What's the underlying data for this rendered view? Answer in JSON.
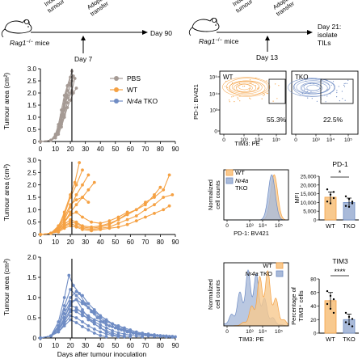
{
  "colors": {
    "pbs": "#a59a94",
    "wt": "#f5a143",
    "tko": "#6f8cc4",
    "wt_fill": "#f8c98e",
    "tko_fill": "#a9bad9",
    "axis": "#000000"
  },
  "schematic_left": {
    "step1": [
      "Inoculate",
      "tumour"
    ],
    "step2": [
      "Adoptive",
      "transfer"
    ],
    "mouse_label": "Rag1",
    "mouse_label_sup": "−/−",
    "mouse_label_rest": " mice",
    "day_mark": "Day 7",
    "end_label": "Day 90"
  },
  "schematic_right": {
    "step1": [
      "Inoculate",
      "tumour"
    ],
    "step2": [
      "Adoptive",
      "transfer"
    ],
    "mouse_label": "Rag1",
    "mouse_label_sup": "−/−",
    "mouse_label_rest": " mice",
    "day_mark": "Day 13",
    "end_label": [
      "Day 21:",
      "isolate",
      "TILs"
    ]
  },
  "legend": [
    {
      "label": "PBS",
      "key": "pbs"
    },
    {
      "label": "WT",
      "key": "wt"
    },
    {
      "label": "Nr4a TKO",
      "italic_part": "Nr4a",
      "rest": " TKO",
      "key": "tko"
    }
  ],
  "growth_axes": {
    "ylabel": "Tumour area (cm²)",
    "xlabel": "Days after tumour inoculation",
    "yticks": [
      "0",
      "0.5",
      "1.0",
      "1.5",
      "2.0",
      "2.5",
      "3.0"
    ],
    "yticks_bottom": [
      "0",
      "0.5",
      "1.0",
      "1.5",
      "2.0"
    ],
    "xticks": [
      "0",
      "10",
      "20",
      "30",
      "40",
      "50",
      "60",
      "70",
      "80",
      "90"
    ]
  },
  "chart_data": [
    {
      "type": "line",
      "panel": "PBS",
      "xlim": [
        0,
        90
      ],
      "ylim": [
        0,
        3.0
      ],
      "vline_x": 21,
      "series": [
        {
          "x": [
            0,
            7,
            10,
            12,
            14,
            16,
            18,
            20
          ],
          "y": [
            0,
            0.05,
            0.2,
            0.55,
            1.0,
            1.55,
            2.1,
            2.65
          ]
        },
        {
          "x": [
            0,
            7,
            10,
            12,
            14,
            16,
            18,
            21
          ],
          "y": [
            0,
            0.05,
            0.15,
            0.4,
            0.8,
            1.3,
            1.9,
            2.5
          ]
        },
        {
          "x": [
            0,
            7,
            10,
            12,
            14,
            16,
            18,
            21
          ],
          "y": [
            0,
            0.05,
            0.2,
            0.6,
            1.1,
            1.7,
            2.3,
            2.9
          ]
        },
        {
          "x": [
            0,
            7,
            10,
            12,
            14,
            16,
            18,
            20
          ],
          "y": [
            0,
            0.05,
            0.3,
            0.7,
            1.3,
            1.9,
            2.3,
            2.4
          ]
        },
        {
          "x": [
            0,
            7,
            10,
            12,
            14,
            16,
            18,
            21,
            23
          ],
          "y": [
            0,
            0.05,
            0.15,
            0.4,
            0.7,
            1.1,
            1.6,
            2.1,
            2.6
          ]
        },
        {
          "x": [
            0,
            7,
            10,
            12,
            14,
            16,
            18,
            20,
            22
          ],
          "y": [
            0,
            0.05,
            0.2,
            0.5,
            0.9,
            1.4,
            1.9,
            2.3,
            2.7
          ]
        },
        {
          "x": [
            0,
            7,
            10,
            12,
            14,
            16,
            18,
            20,
            22,
            24
          ],
          "y": [
            0,
            0.05,
            0.15,
            0.3,
            0.6,
            1.0,
            1.4,
            1.7,
            2.0,
            2.2
          ]
        },
        {
          "x": [
            0,
            7,
            10,
            12,
            14,
            16,
            18,
            20
          ],
          "y": [
            0,
            0.05,
            0.25,
            0.6,
            1.0,
            1.5,
            1.8,
            2.0
          ]
        }
      ]
    },
    {
      "type": "line",
      "panel": "WT",
      "xlim": [
        0,
        90
      ],
      "ylim": [
        0,
        3.0
      ],
      "vline_x": 21,
      "series": [
        {
          "x": [
            0,
            7,
            12,
            16,
            20,
            23,
            26
          ],
          "y": [
            0,
            0.05,
            0.3,
            0.9,
            1.6,
            2.1,
            2.9
          ]
        },
        {
          "x": [
            0,
            7,
            12,
            16,
            20,
            24,
            28
          ],
          "y": [
            0,
            0.05,
            0.35,
            0.8,
            1.5,
            2.0,
            2.6
          ]
        },
        {
          "x": [
            0,
            7,
            12,
            16,
            20,
            24,
            28,
            32
          ],
          "y": [
            0,
            0.05,
            0.25,
            0.6,
            1.1,
            1.6,
            2.0,
            2.4
          ]
        },
        {
          "x": [
            0,
            7,
            12,
            16,
            20,
            24,
            28,
            32,
            36
          ],
          "y": [
            0,
            0.05,
            0.2,
            0.5,
            0.9,
            1.2,
            1.5,
            1.8,
            2.1
          ]
        },
        {
          "x": [
            0,
            7,
            12,
            16,
            20,
            24,
            28,
            32
          ],
          "y": [
            0,
            0.05,
            0.3,
            0.7,
            1.2,
            1.4,
            1.5,
            1.3
          ]
        },
        {
          "x": [
            0,
            7,
            12,
            16,
            20,
            24,
            28,
            34,
            40,
            46,
            52,
            58
          ],
          "y": [
            0,
            0.05,
            0.2,
            0.5,
            0.8,
            0.9,
            0.7,
            0.5,
            0.45,
            0.55,
            0.7,
            0.9
          ]
        },
        {
          "x": [
            0,
            7,
            12,
            16,
            20,
            24,
            28,
            34,
            40,
            46,
            52,
            58,
            64,
            70,
            76,
            82,
            86
          ],
          "y": [
            0,
            0.05,
            0.2,
            0.4,
            0.6,
            0.5,
            0.35,
            0.3,
            0.35,
            0.45,
            0.6,
            0.8,
            1.0,
            1.3,
            1.5,
            1.8,
            2.4
          ]
        },
        {
          "x": [
            0,
            7,
            12,
            16,
            20,
            24,
            28,
            34,
            40,
            46,
            52,
            58,
            64,
            70,
            76,
            80
          ],
          "y": [
            0,
            0.05,
            0.15,
            0.35,
            0.5,
            0.45,
            0.3,
            0.25,
            0.3,
            0.4,
            0.6,
            0.85,
            1.0,
            1.2,
            1.6,
            1.9
          ]
        },
        {
          "x": [
            0,
            7,
            12,
            16,
            20,
            24,
            28,
            34,
            40,
            46,
            52,
            58,
            64,
            70,
            76,
            82,
            88
          ],
          "y": [
            0,
            0.05,
            0.15,
            0.3,
            0.45,
            0.35,
            0.25,
            0.2,
            0.25,
            0.3,
            0.45,
            0.6,
            0.75,
            1.0,
            1.2,
            1.5,
            1.6
          ]
        },
        {
          "x": [
            0,
            7,
            12,
            16,
            20,
            24,
            28,
            34,
            40,
            46,
            52,
            58,
            64,
            70,
            76,
            82,
            86
          ],
          "y": [
            0,
            0.05,
            0.1,
            0.25,
            0.35,
            0.3,
            0.2,
            0.15,
            0.2,
            0.25,
            0.3,
            0.4,
            0.55,
            0.7,
            0.85,
            1.0,
            1.15
          ]
        }
      ]
    },
    {
      "type": "line",
      "panel": "Nr4a TKO",
      "xlim": [
        0,
        90
      ],
      "ylim": [
        0,
        2.0
      ],
      "vline_x": 21,
      "series": [
        {
          "x": [
            0,
            7,
            12,
            16,
            19,
            22,
            26,
            30,
            34,
            38,
            42,
            46,
            50,
            54,
            58,
            62,
            66,
            70,
            74,
            78,
            82,
            86,
            90
          ],
          "y": [
            0,
            0.05,
            0.4,
            1.0,
            1.55,
            1.3,
            1.1,
            0.85,
            0.65,
            0.5,
            0.4,
            0.3,
            0.25,
            0.2,
            0.15,
            0.12,
            0.1,
            0.08,
            0.07,
            0.06,
            0.05,
            0.04,
            0.03
          ]
        },
        {
          "x": [
            0,
            7,
            12,
            16,
            20,
            24,
            28,
            32,
            36,
            40,
            44,
            48,
            52,
            56,
            60,
            64,
            68,
            72,
            76,
            80,
            84,
            88
          ],
          "y": [
            0,
            0.05,
            0.3,
            0.8,
            1.2,
            1.05,
            0.9,
            0.75,
            0.6,
            0.5,
            0.4,
            0.35,
            0.3,
            0.25,
            0.2,
            0.15,
            0.12,
            0.1,
            0.08,
            0.06,
            0.05,
            0.04
          ]
        },
        {
          "x": [
            0,
            7,
            12,
            16,
            20,
            24,
            28,
            32,
            36,
            40,
            44,
            48,
            52,
            56,
            60,
            64,
            68,
            72
          ],
          "y": [
            0,
            0.05,
            0.3,
            0.7,
            1.0,
            1.15,
            1.05,
            0.85,
            0.7,
            0.55,
            0.45,
            0.35,
            0.25,
            0.2,
            0.15,
            0.1,
            0.08,
            0.05
          ]
        },
        {
          "x": [
            0,
            7,
            12,
            16,
            20,
            24,
            28,
            32,
            36,
            40,
            44,
            48,
            52,
            56,
            60,
            64,
            68,
            72,
            76
          ],
          "y": [
            0,
            0.05,
            0.25,
            0.6,
            0.9,
            0.95,
            0.85,
            0.75,
            0.65,
            0.55,
            0.45,
            0.35,
            0.3,
            0.22,
            0.17,
            0.12,
            0.08,
            0.06,
            0.04
          ]
        },
        {
          "x": [
            0,
            7,
            12,
            16,
            20,
            24,
            28,
            32,
            36,
            40,
            44,
            48,
            52,
            56,
            60
          ],
          "y": [
            0,
            0.05,
            0.2,
            0.5,
            0.8,
            0.75,
            0.6,
            0.45,
            0.35,
            0.25,
            0.18,
            0.12,
            0.08,
            0.05,
            0.03
          ]
        },
        {
          "x": [
            0,
            7,
            12,
            16,
            20,
            24,
            28,
            32,
            36,
            40,
            44,
            48,
            52,
            56,
            60,
            64,
            68
          ],
          "y": [
            0,
            0.05,
            0.2,
            0.45,
            0.7,
            0.65,
            0.55,
            0.5,
            0.4,
            0.32,
            0.25,
            0.18,
            0.13,
            0.1,
            0.07,
            0.05,
            0.03
          ]
        },
        {
          "x": [
            0,
            7,
            12,
            16,
            20,
            24,
            28,
            32,
            36,
            40,
            44,
            48,
            52
          ],
          "y": [
            0,
            0.05,
            0.15,
            0.35,
            0.55,
            0.5,
            0.4,
            0.3,
            0.22,
            0.15,
            0.1,
            0.06,
            0.03
          ]
        },
        {
          "x": [
            0,
            7,
            12,
            16,
            20,
            24,
            28,
            32,
            36,
            40,
            44,
            48,
            52,
            56
          ],
          "y": [
            0,
            0.05,
            0.2,
            0.5,
            0.85,
            0.95,
            0.7,
            0.5,
            0.35,
            0.25,
            0.15,
            0.08,
            0.05,
            0.03
          ]
        },
        {
          "x": [
            0,
            7,
            12,
            16,
            20,
            24,
            28,
            32,
            36,
            40,
            44
          ],
          "y": [
            0,
            0.05,
            0.15,
            0.3,
            0.45,
            0.38,
            0.28,
            0.2,
            0.12,
            0.06,
            0.03
          ]
        },
        {
          "x": [
            0,
            7,
            12,
            16,
            20,
            24,
            28,
            32,
            36,
            40,
            44,
            48,
            52,
            56,
            60,
            64,
            68,
            72,
            76,
            80,
            84,
            88
          ],
          "y": [
            0,
            0.05,
            0.2,
            0.4,
            0.65,
            0.7,
            0.65,
            0.55,
            0.45,
            0.4,
            0.33,
            0.28,
            0.22,
            0.18,
            0.14,
            0.1,
            0.08,
            0.06,
            0.05,
            0.04,
            0.03,
            0.02
          ]
        }
      ]
    },
    {
      "type": "scatter",
      "panel": "flow",
      "xlabel": "TIM3: PE",
      "ylabel": "PD-1: BV421",
      "xticks": [
        "0",
        "10³",
        "10⁴",
        "10⁵"
      ],
      "yticks": [
        "0",
        "10³",
        "10⁴",
        "10⁵"
      ],
      "plots": [
        {
          "name": "WT",
          "gate_percent": "55.3%"
        },
        {
          "name": "TKO",
          "gate_percent": "22.5%"
        }
      ]
    },
    {
      "type": "area",
      "panel": "PD-1 histogram",
      "xlabel": "PD-1: BV421",
      "ylabel": [
        "Normalized",
        "cell counts"
      ],
      "xticks": [
        "0",
        "10³",
        "10⁴",
        "10⁵"
      ],
      "legend": [
        {
          "label": "WT",
          "key": "wt"
        },
        {
          "label": "Nr4a TKO",
          "italic_part": "Nr4a",
          "rest": " TKO",
          "key": "tko"
        }
      ],
      "series": [
        {
          "name": "WT",
          "peak_log": 4.05
        },
        {
          "name": "TKO",
          "peak_log": 3.85
        }
      ]
    },
    {
      "type": "bar",
      "panel": "PD-1 MFI",
      "title": "PD-1",
      "ylabel": "MFI",
      "categories": [
        "WT",
        "TKO"
      ],
      "values": [
        13000,
        10000
      ],
      "errors": [
        3000,
        2500
      ],
      "ylim": [
        0,
        25000
      ],
      "yticks": [
        "0",
        "5,000",
        "10,000",
        "15,000",
        "20,000",
        "25,000"
      ],
      "points": [
        [
          17500,
          14500,
          12500,
          10500,
          9500,
          16000
        ],
        [
          13500,
          12000,
          9500,
          8000,
          7500,
          10500
        ]
      ],
      "significance": "*"
    },
    {
      "type": "area",
      "panel": "TIM3 histogram",
      "xlabel": "TIM3: PE",
      "ylabel": [
        "Normalized",
        "cell counts"
      ],
      "xticks": [
        "0",
        "10³",
        "10⁴",
        "10⁵"
      ],
      "legend": [
        {
          "label": "WT",
          "key": "wt"
        },
        {
          "label": "Nr4a TKO",
          "italic_part": "Nr4a",
          "rest": " TKO",
          "key": "tko"
        }
      ],
      "series": [
        {
          "name": "WT",
          "peak_log": 3.3
        },
        {
          "name": "TKO",
          "peak_log": 2.2
        }
      ]
    },
    {
      "type": "bar",
      "panel": "TIM3 percentage",
      "title": "TIM3",
      "ylabel": [
        "Percentage of",
        "TIM3⁺ cells"
      ],
      "categories": [
        "WT",
        "TKO"
      ],
      "values": [
        48,
        20
      ],
      "errors": [
        12,
        8
      ],
      "ylim": [
        0,
        80
      ],
      "yticks": [
        "0",
        "20",
        "40",
        "60",
        "80"
      ],
      "points": [
        [
          62,
          55,
          50,
          43,
          36,
          30
        ],
        [
          30,
          24,
          21,
          16,
          13,
          10
        ]
      ],
      "significance": "****"
    }
  ]
}
